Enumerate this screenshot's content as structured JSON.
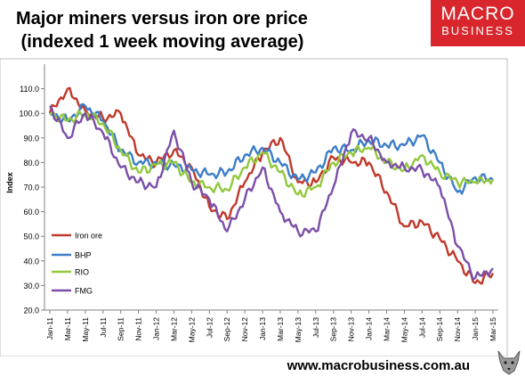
{
  "header": {
    "title_line1": "Major miners versus iron ore price",
    "title_line2": " (indexed 1 week moving average)",
    "logo_line1": "MACRO",
    "logo_line2": "BUSINESS"
  },
  "footer": {
    "url": "www.macrobusiness.com.au"
  },
  "colors": {
    "iron_ore": "#c0392b",
    "bhp": "#3d7dc8",
    "rio": "#92c83e",
    "fmg": "#7b4fa8",
    "logo_bg": "#d8262c"
  },
  "chart_data": {
    "type": "line",
    "title": "Major miners versus iron ore price (indexed 1 week moving average)",
    "ylabel": "Index",
    "xlabel": "",
    "ylim": [
      20,
      120
    ],
    "yticks": [
      "20.0",
      "30.0",
      "40.0",
      "50.0",
      "60.0",
      "70.0",
      "80.0",
      "90.0",
      "100.0",
      "110.0"
    ],
    "xticks": [
      "Jan-11",
      "Mar-11",
      "May-11",
      "Jul-11",
      "Sep-11",
      "Nov-11",
      "Jan-12",
      "Mar-12",
      "May-12",
      "Jul-12",
      "Sep-12",
      "Nov-12",
      "Jan-13",
      "Mar-13",
      "May-13",
      "Jul-13",
      "Sep-13",
      "Nov-13",
      "Jan-14",
      "Mar-14",
      "May-14",
      "Jul-14",
      "Sep-14",
      "Nov-14",
      "Jan-15",
      "Mar-15"
    ],
    "x": [
      "Jan-11",
      "Mar-11",
      "May-11",
      "Jul-11",
      "Sep-11",
      "Nov-11",
      "Jan-12",
      "Mar-12",
      "May-12",
      "Jul-12",
      "Sep-12",
      "Nov-12",
      "Jan-13",
      "Mar-13",
      "May-13",
      "Jul-13",
      "Sep-13",
      "Nov-13",
      "Jan-14",
      "Mar-14",
      "May-14",
      "Jul-14",
      "Sep-14",
      "Nov-14",
      "Jan-15",
      "Mar-15"
    ],
    "legend_position": "bottom-left",
    "grid": false,
    "series": [
      {
        "name": "Iron ore",
        "color": "#c0392b",
        "values": [
          100,
          110,
          101,
          98,
          100,
          83,
          80,
          85,
          78,
          62,
          57,
          72,
          84,
          90,
          72,
          72,
          82,
          80,
          80,
          68,
          54,
          56,
          49,
          40,
          31,
          35
        ]
      },
      {
        "name": "BHP",
        "color": "#3d7dc8",
        "values": [
          100,
          97,
          103,
          97,
          85,
          80,
          80,
          79,
          77,
          75,
          76,
          83,
          86,
          80,
          73,
          76,
          86,
          85,
          89,
          87,
          87,
          91,
          80,
          68,
          74,
          73
        ]
      },
      {
        "name": "RIO",
        "color": "#92c83e",
        "values": [
          100,
          97,
          100,
          96,
          85,
          76,
          79,
          80,
          72,
          70,
          69,
          78,
          84,
          76,
          67,
          70,
          80,
          84,
          86,
          80,
          77,
          83,
          76,
          72,
          72,
          73
        ]
      },
      {
        "name": "FMG",
        "color": "#7b4fa8",
        "values": [
          103,
          90,
          100,
          92,
          78,
          72,
          70,
          93,
          72,
          65,
          52,
          65,
          78,
          60,
          52,
          52,
          70,
          92,
          90,
          80,
          78,
          77,
          70,
          46,
          33,
          37
        ]
      }
    ]
  }
}
